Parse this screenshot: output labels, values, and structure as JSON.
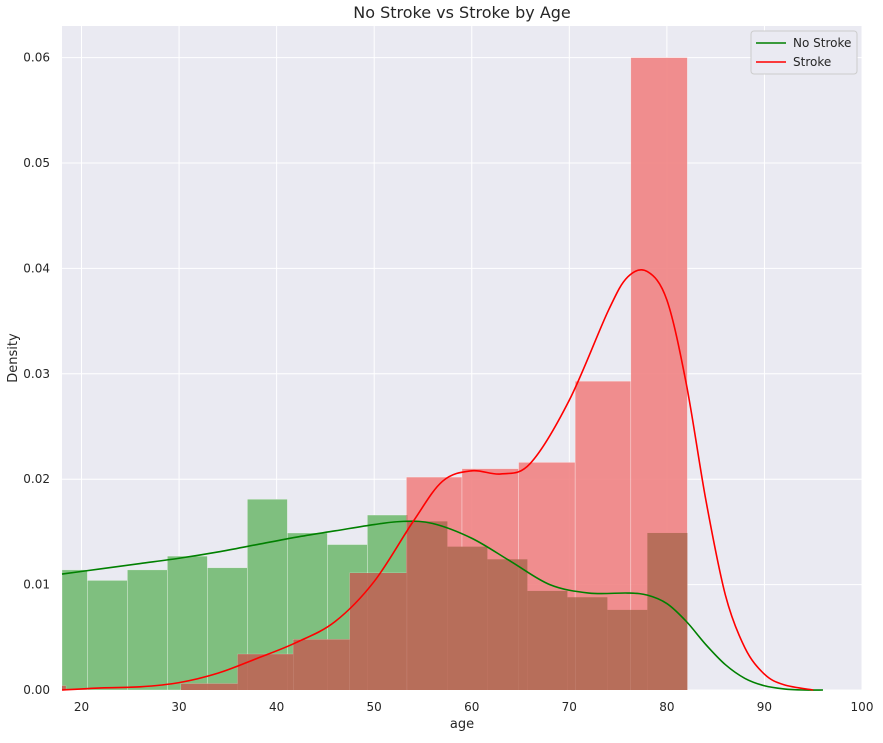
{
  "chart_data": {
    "type": "bar",
    "title": "No Stroke vs Stroke by Age",
    "xlabel": "age",
    "ylabel": "Density",
    "xlim": [
      18,
      100
    ],
    "ylim": [
      0,
      0.063
    ],
    "xticks": [
      20,
      30,
      40,
      50,
      60,
      70,
      80,
      90,
      100
    ],
    "yticks": [
      0.0,
      0.01,
      0.02,
      0.03,
      0.04,
      0.05,
      0.06
    ],
    "ytick_labels": [
      "0.00",
      "0.01",
      "0.02",
      "0.03",
      "0.04",
      "0.05",
      "0.06"
    ],
    "grid": true,
    "legend_position": "top-right",
    "legend": [
      "No Stroke",
      "Stroke"
    ],
    "colors": {
      "background": "#eaeaf2",
      "grid": "#ffffff",
      "no_stroke_bar": "#7fbf7f",
      "no_stroke_line": "#008000",
      "stroke_bar": "#f08080",
      "stroke_line": "#ff0000",
      "overlap_bar": "#b76e5a"
    },
    "histograms": [
      {
        "name": "No Stroke",
        "bins": [
          {
            "x0": 18,
            "x1": 20.6,
            "y": 0.0114
          },
          {
            "x0": 20.6,
            "x1": 24.7,
            "y": 0.0104
          },
          {
            "x0": 24.7,
            "x1": 28.8,
            "y": 0.0114
          },
          {
            "x0": 28.8,
            "x1": 32.9,
            "y": 0.0127
          },
          {
            "x0": 32.9,
            "x1": 37.0,
            "y": 0.0116
          },
          {
            "x0": 37.0,
            "x1": 41.1,
            "y": 0.0181
          },
          {
            "x0": 41.1,
            "x1": 45.2,
            "y": 0.0149
          },
          {
            "x0": 45.2,
            "x1": 49.3,
            "y": 0.0138
          },
          {
            "x0": 49.3,
            "x1": 53.4,
            "y": 0.0166
          },
          {
            "x0": 53.4,
            "x1": 57.5,
            "y": 0.016
          },
          {
            "x0": 57.5,
            "x1": 61.6,
            "y": 0.0136
          },
          {
            "x0": 61.6,
            "x1": 65.7,
            "y": 0.0124
          },
          {
            "x0": 65.7,
            "x1": 69.8,
            "y": 0.0094
          },
          {
            "x0": 69.8,
            "x1": 73.9,
            "y": 0.0088
          },
          {
            "x0": 73.9,
            "x1": 78.0,
            "y": 0.0076
          },
          {
            "x0": 78.0,
            "x1": 82.1,
            "y": 0.0149
          }
        ]
      },
      {
        "name": "Stroke",
        "bins": [
          {
            "x0": 18,
            "x1": 18.4,
            "y": 0.0004
          },
          {
            "x0": 18.4,
            "x1": 30.2,
            "y": 0.0
          },
          {
            "x0": 30.2,
            "x1": 36.0,
            "y": 0.0006
          },
          {
            "x0": 36.0,
            "x1": 41.7,
            "y": 0.0034
          },
          {
            "x0": 41.7,
            "x1": 47.5,
            "y": 0.0048
          },
          {
            "x0": 47.5,
            "x1": 53.3,
            "y": 0.0111
          },
          {
            "x0": 53.3,
            "x1": 59.0,
            "y": 0.0202
          },
          {
            "x0": 59.0,
            "x1": 64.8,
            "y": 0.021
          },
          {
            "x0": 64.8,
            "x1": 70.6,
            "y": 0.0216
          },
          {
            "x0": 70.6,
            "x1": 76.3,
            "y": 0.0293
          },
          {
            "x0": 76.3,
            "x1": 82.1,
            "y": 0.06
          }
        ]
      }
    ],
    "series": [
      {
        "name": "No Stroke",
        "x": [
          18,
          22,
          26,
          30,
          34,
          38,
          42,
          46,
          50,
          53,
          56,
          60,
          64,
          68,
          72,
          76,
          78,
          80,
          82,
          84,
          86,
          88,
          90,
          92,
          94,
          96
        ],
        "y": [
          0.011,
          0.0115,
          0.012,
          0.0125,
          0.0131,
          0.0138,
          0.0145,
          0.0151,
          0.0157,
          0.016,
          0.0158,
          0.0144,
          0.0122,
          0.01,
          0.0092,
          0.0092,
          0.009,
          0.0082,
          0.0065,
          0.0043,
          0.0024,
          0.0011,
          0.0004,
          0.0001,
          0.0,
          0.0
        ]
      },
      {
        "name": "Stroke",
        "x": [
          18,
          22,
          26,
          30,
          34,
          38,
          42,
          46,
          50,
          54,
          57,
          60,
          63,
          66,
          70,
          74,
          76,
          78,
          80,
          82,
          84,
          86,
          88,
          90,
          92,
          95
        ],
        "y": [
          0.0,
          0.0002,
          0.0003,
          0.0007,
          0.0016,
          0.003,
          0.0045,
          0.0065,
          0.0103,
          0.016,
          0.0198,
          0.0208,
          0.0205,
          0.0215,
          0.0275,
          0.036,
          0.0392,
          0.0397,
          0.037,
          0.029,
          0.018,
          0.009,
          0.004,
          0.0015,
          0.0005,
          0.0
        ]
      }
    ]
  }
}
